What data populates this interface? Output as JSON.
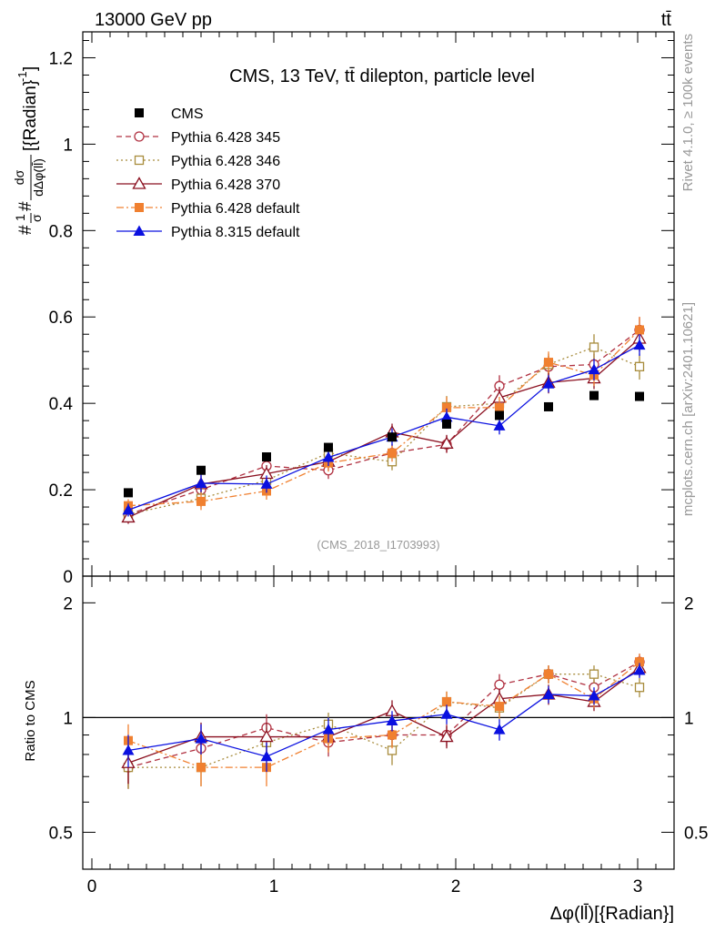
{
  "header": {
    "left": "13000 GeV pp",
    "right": "tt̄"
  },
  "side_labels": {
    "rivet": "Rivet 4.1.0, ≥ 100k events",
    "mcplots": "mcplots.cern.ch [arXiv:2401.10621]"
  },
  "chart_data": {
    "type": "line",
    "title": "CMS, 13 TeV, tt̄ dilepton, particle level",
    "watermark": "(CMS_2018_I1703993)",
    "ylabel_top": "#1/σ# dσ / dΔφ(ll̄) [{Radian}⁻¹]",
    "ylabel_top_parts": {
      "prefix": "#",
      "one": "1",
      "sigma": "σ",
      "hash": "#",
      "num": "dσ",
      "den": "dΔφ(ll̄)",
      "unit": "[{Radian}",
      "exp": "-1",
      "close": "]"
    },
    "ylabel_ratio": "Ratio to CMS",
    "xlabel": "Δφ(ll̄)[{Radian}]",
    "xlim": [
      -0.05,
      3.2
    ],
    "ylim_top": [
      0,
      1.26
    ],
    "ylim_ratio": [
      0.4,
      2.35
    ],
    "x_ticks": [
      "0",
      "1",
      "2",
      "3"
    ],
    "y_ticks_top": [
      "0",
      "0.2",
      "0.4",
      "0.6",
      "0.8",
      "1",
      "1.2"
    ],
    "y_ticks_ratio": [
      "0.5",
      "1",
      "2"
    ],
    "x": [
      0.2,
      0.6,
      0.96,
      1.3,
      1.65,
      1.95,
      2.24,
      2.51,
      2.76,
      3.01
    ],
    "series": [
      {
        "name": "CMS",
        "color": "#000000",
        "marker": "square-filled",
        "dash": "none",
        "values": [
          0.193,
          0.245,
          0.276,
          0.298,
          0.322,
          0.352,
          0.372,
          0.392,
          0.418,
          0.416
        ],
        "errors": [
          0.004,
          0.004,
          0.004,
          0.004,
          0.004,
          0.004,
          0.004,
          0.004,
          0.004,
          0.004
        ],
        "ratio": [
          1,
          1,
          1,
          1,
          1,
          1,
          1,
          1,
          1,
          1
        ],
        "ratio_errors": [
          0,
          0,
          0,
          0,
          0,
          0,
          0,
          0,
          0,
          0
        ]
      },
      {
        "name": "Pythia 6.428 345",
        "color": "#b03040",
        "marker": "circle-open",
        "dash": "6,4",
        "values": [
          0.143,
          0.2,
          0.255,
          0.245,
          0.285,
          0.305,
          0.44,
          0.485,
          0.49,
          0.57
        ],
        "errors": [
          0.015,
          0.02,
          0.02,
          0.02,
          0.02,
          0.02,
          0.025,
          0.025,
          0.025,
          0.03
        ],
        "ratio": [
          0.74,
          0.83,
          0.94,
          0.86,
          0.9,
          0.9,
          1.22,
          1.3,
          1.2,
          1.4
        ],
        "ratio_errors": [
          0.09,
          0.08,
          0.08,
          0.07,
          0.07,
          0.06,
          0.08,
          0.07,
          0.06,
          0.07
        ]
      },
      {
        "name": "Pythia 6.428 346",
        "color": "#a88c3c",
        "marker": "square-open",
        "dash": "2,3",
        "values": [
          0.143,
          0.18,
          0.222,
          0.285,
          0.265,
          0.392,
          0.4,
          0.49,
          0.53,
          0.485
        ],
        "errors": [
          0.015,
          0.02,
          0.02,
          0.02,
          0.02,
          0.025,
          0.025,
          0.025,
          0.03,
          0.03
        ],
        "ratio": [
          0.74,
          0.74,
          0.86,
          0.96,
          0.82,
          1.1,
          1.06,
          1.3,
          1.3,
          1.2
        ],
        "ratio_errors": [
          0.09,
          0.08,
          0.08,
          0.07,
          0.07,
          0.07,
          0.07,
          0.07,
          0.07,
          0.07
        ]
      },
      {
        "name": "Pythia 6.428 370",
        "color": "#8b1020",
        "marker": "triangle-open",
        "dash": "none",
        "values": [
          0.136,
          0.213,
          0.237,
          0.265,
          0.333,
          0.307,
          0.413,
          0.448,
          0.458,
          0.55
        ],
        "errors": [
          0.015,
          0.02,
          0.02,
          0.02,
          0.02,
          0.02,
          0.025,
          0.025,
          0.025,
          0.03
        ],
        "ratio": [
          0.76,
          0.89,
          0.89,
          0.89,
          1.04,
          0.89,
          1.12,
          1.15,
          1.1,
          1.35
        ],
        "ratio_errors": [
          0.09,
          0.08,
          0.08,
          0.07,
          0.07,
          0.06,
          0.07,
          0.07,
          0.06,
          0.07
        ]
      },
      {
        "name": "Pythia 6.428 default",
        "color": "#f08030",
        "marker": "square-filled",
        "dash": "8,3,2,3",
        "values": [
          0.163,
          0.173,
          0.197,
          0.262,
          0.285,
          0.39,
          0.39,
          0.495,
          0.465,
          0.57
        ],
        "errors": [
          0.015,
          0.02,
          0.02,
          0.02,
          0.02,
          0.025,
          0.025,
          0.025,
          0.025,
          0.03
        ],
        "ratio": [
          0.87,
          0.74,
          0.74,
          0.88,
          0.9,
          1.1,
          1.07,
          1.3,
          1.12,
          1.4
        ],
        "ratio_errors": [
          0.09,
          0.08,
          0.08,
          0.07,
          0.07,
          0.07,
          0.07,
          0.07,
          0.06,
          0.07
        ]
      },
      {
        "name": "Pythia 8.315 default",
        "color": "#0a10e0",
        "marker": "triangle-filled",
        "dash": "none",
        "values": [
          0.153,
          0.215,
          0.213,
          0.275,
          0.322,
          0.368,
          0.348,
          0.445,
          0.478,
          0.535
        ],
        "errors": [
          0.015,
          0.02,
          0.02,
          0.02,
          0.02,
          0.02,
          0.02,
          0.02,
          0.025,
          0.025
        ],
        "ratio": [
          0.82,
          0.88,
          0.79,
          0.93,
          0.98,
          1.02,
          0.93,
          1.15,
          1.14,
          1.33
        ],
        "ratio_errors": [
          0.08,
          0.08,
          0.07,
          0.07,
          0.06,
          0.06,
          0.06,
          0.06,
          0.06,
          0.06
        ]
      }
    ]
  }
}
